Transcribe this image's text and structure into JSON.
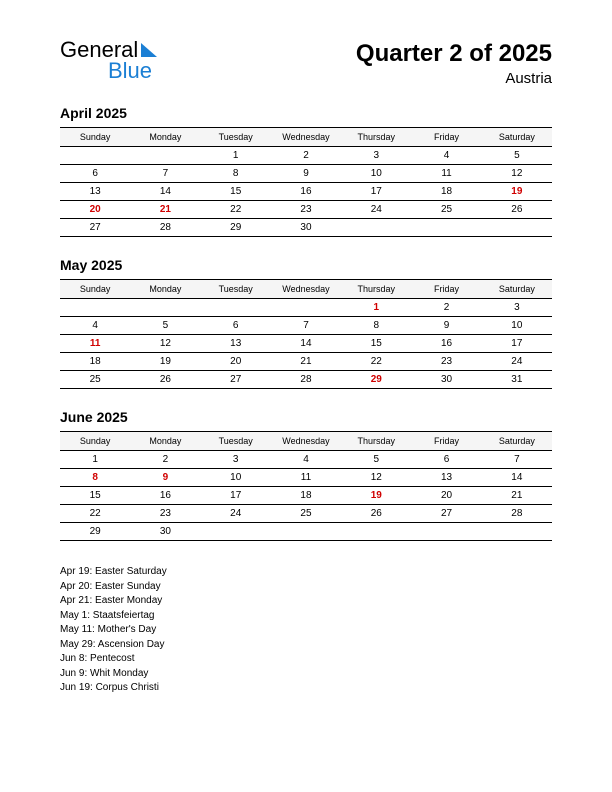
{
  "logo": {
    "line1": "General",
    "line2": "Blue",
    "color_primary": "#000000",
    "color_accent": "#1b7fd4"
  },
  "header": {
    "title": "Quarter 2 of 2025",
    "subtitle": "Austria"
  },
  "day_headers": [
    "Sunday",
    "Monday",
    "Tuesday",
    "Wednesday",
    "Thursday",
    "Friday",
    "Saturday"
  ],
  "colors": {
    "holiday_text": "#d00000",
    "normal_text": "#000000",
    "header_bg": "#f5f5f5",
    "border": "#000000",
    "background": "#ffffff"
  },
  "fonts": {
    "title_size_pt": 24,
    "subtitle_size_pt": 15,
    "month_title_size_pt": 14,
    "dayhead_size_pt": 9,
    "cell_size_pt": 10,
    "holiday_list_size_pt": 10
  },
  "months": [
    {
      "title": "April 2025",
      "weeks": [
        [
          {
            "d": ""
          },
          {
            "d": ""
          },
          {
            "d": "1"
          },
          {
            "d": "2"
          },
          {
            "d": "3"
          },
          {
            "d": "4"
          },
          {
            "d": "5"
          }
        ],
        [
          {
            "d": "6"
          },
          {
            "d": "7"
          },
          {
            "d": "8"
          },
          {
            "d": "9"
          },
          {
            "d": "10"
          },
          {
            "d": "11"
          },
          {
            "d": "12"
          }
        ],
        [
          {
            "d": "13"
          },
          {
            "d": "14"
          },
          {
            "d": "15"
          },
          {
            "d": "16"
          },
          {
            "d": "17"
          },
          {
            "d": "18"
          },
          {
            "d": "19",
            "h": true
          }
        ],
        [
          {
            "d": "20",
            "h": true
          },
          {
            "d": "21",
            "h": true
          },
          {
            "d": "22"
          },
          {
            "d": "23"
          },
          {
            "d": "24"
          },
          {
            "d": "25"
          },
          {
            "d": "26"
          }
        ],
        [
          {
            "d": "27"
          },
          {
            "d": "28"
          },
          {
            "d": "29"
          },
          {
            "d": "30"
          },
          {
            "d": ""
          },
          {
            "d": ""
          },
          {
            "d": ""
          }
        ]
      ]
    },
    {
      "title": "May 2025",
      "weeks": [
        [
          {
            "d": ""
          },
          {
            "d": ""
          },
          {
            "d": ""
          },
          {
            "d": ""
          },
          {
            "d": "1",
            "h": true
          },
          {
            "d": "2"
          },
          {
            "d": "3"
          }
        ],
        [
          {
            "d": "4"
          },
          {
            "d": "5"
          },
          {
            "d": "6"
          },
          {
            "d": "7"
          },
          {
            "d": "8"
          },
          {
            "d": "9"
          },
          {
            "d": "10"
          }
        ],
        [
          {
            "d": "11",
            "h": true
          },
          {
            "d": "12"
          },
          {
            "d": "13"
          },
          {
            "d": "14"
          },
          {
            "d": "15"
          },
          {
            "d": "16"
          },
          {
            "d": "17"
          }
        ],
        [
          {
            "d": "18"
          },
          {
            "d": "19"
          },
          {
            "d": "20"
          },
          {
            "d": "21"
          },
          {
            "d": "22"
          },
          {
            "d": "23"
          },
          {
            "d": "24"
          }
        ],
        [
          {
            "d": "25"
          },
          {
            "d": "26"
          },
          {
            "d": "27"
          },
          {
            "d": "28"
          },
          {
            "d": "29",
            "h": true
          },
          {
            "d": "30"
          },
          {
            "d": "31"
          }
        ]
      ]
    },
    {
      "title": "June 2025",
      "weeks": [
        [
          {
            "d": "1"
          },
          {
            "d": "2"
          },
          {
            "d": "3"
          },
          {
            "d": "4"
          },
          {
            "d": "5"
          },
          {
            "d": "6"
          },
          {
            "d": "7"
          }
        ],
        [
          {
            "d": "8",
            "h": true
          },
          {
            "d": "9",
            "h": true
          },
          {
            "d": "10"
          },
          {
            "d": "11"
          },
          {
            "d": "12"
          },
          {
            "d": "13"
          },
          {
            "d": "14"
          }
        ],
        [
          {
            "d": "15"
          },
          {
            "d": "16"
          },
          {
            "d": "17"
          },
          {
            "d": "18"
          },
          {
            "d": "19",
            "h": true
          },
          {
            "d": "20"
          },
          {
            "d": "21"
          }
        ],
        [
          {
            "d": "22"
          },
          {
            "d": "23"
          },
          {
            "d": "24"
          },
          {
            "d": "25"
          },
          {
            "d": "26"
          },
          {
            "d": "27"
          },
          {
            "d": "28"
          }
        ],
        [
          {
            "d": "29"
          },
          {
            "d": "30"
          },
          {
            "d": ""
          },
          {
            "d": ""
          },
          {
            "d": ""
          },
          {
            "d": ""
          },
          {
            "d": ""
          }
        ]
      ]
    }
  ],
  "holiday_list": [
    "Apr 19: Easter Saturday",
    "Apr 20: Easter Sunday",
    "Apr 21: Easter Monday",
    "May 1: Staatsfeiertag",
    "May 11: Mother's Day",
    "May 29: Ascension Day",
    "Jun 8: Pentecost",
    "Jun 9: Whit Monday",
    "Jun 19: Corpus Christi"
  ]
}
